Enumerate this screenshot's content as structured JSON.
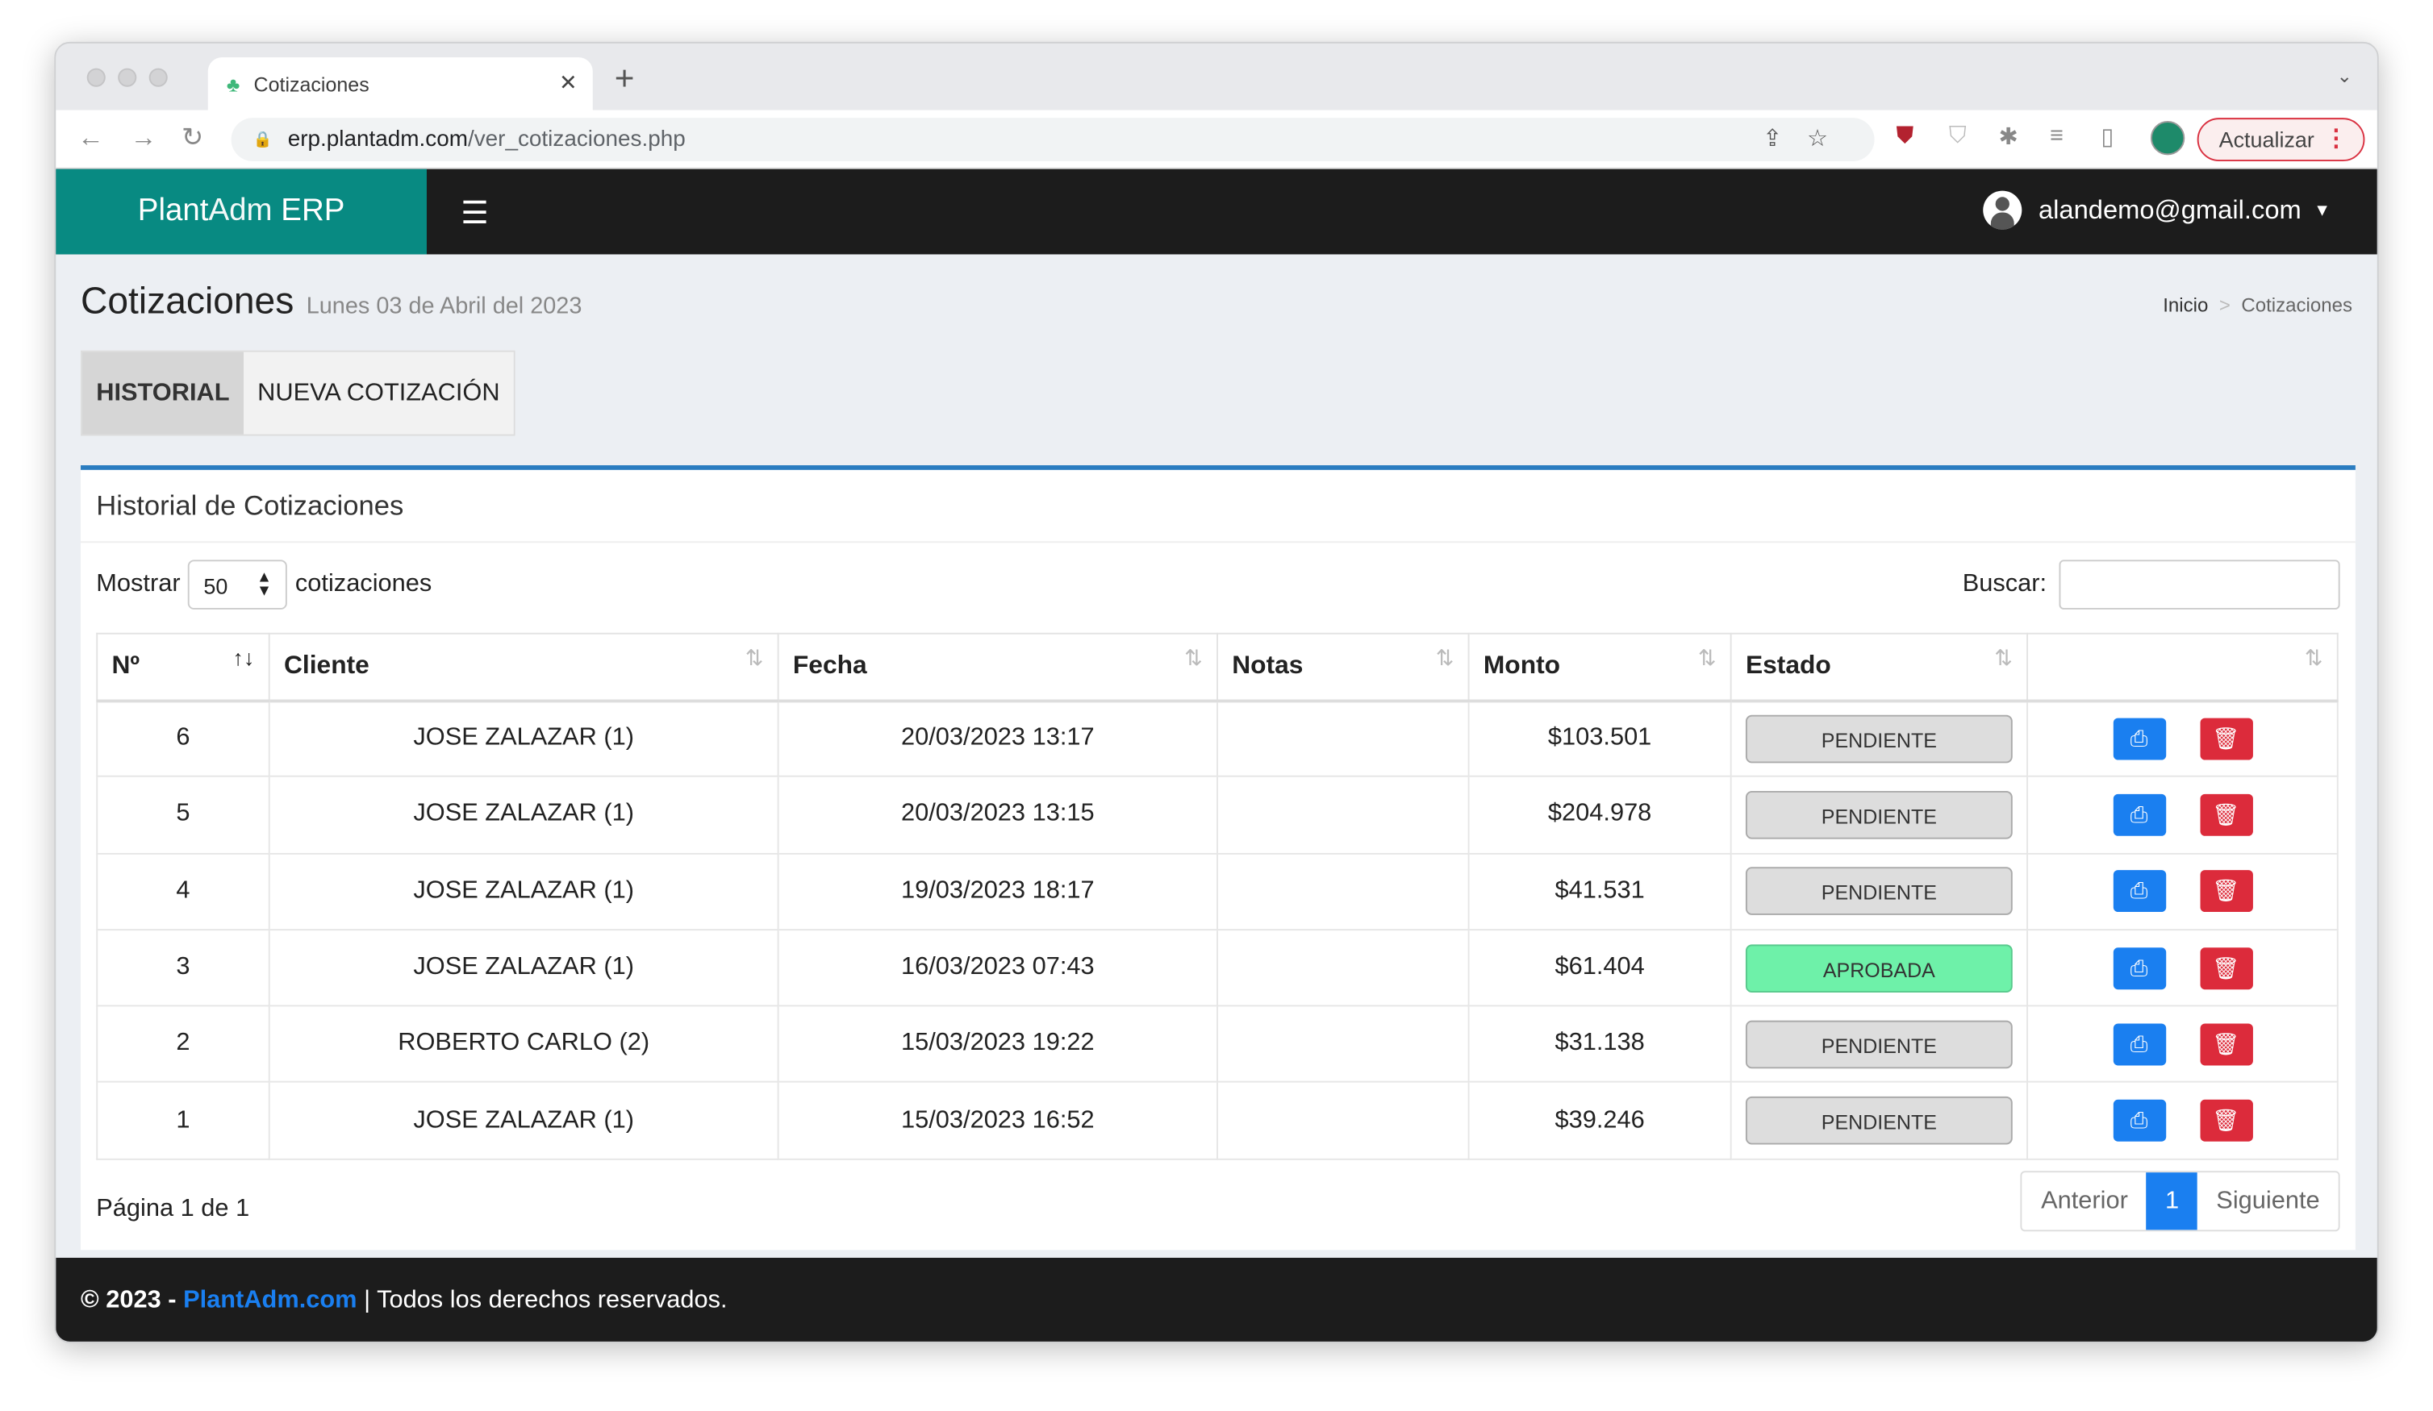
{
  "browser": {
    "tab_title": "Cotizaciones",
    "url_host": "erp.plantadm.com",
    "url_path": "/ver_cotizaciones.php",
    "update_label": "Actualizar"
  },
  "navbar": {
    "brand_bold": "Plant",
    "brand_thin": "Adm",
    "brand_rest": " ERP",
    "user_email": "alandemo@gmail.com"
  },
  "page": {
    "title": "Cotizaciones",
    "date": "Lunes 03 de Abril del 2023",
    "breadcrumb": [
      "Inicio",
      "Cotizaciones"
    ]
  },
  "tabs": [
    "HISTORIAL",
    "NUEVA COTIZACIÓN"
  ],
  "card": {
    "title": "Historial de Cotizaciones",
    "show_label": "Mostrar",
    "show_value": "50",
    "show_suffix": "cotizaciones",
    "search_label": "Buscar:",
    "search_value": ""
  },
  "table": {
    "headers": [
      "Nº",
      "Cliente",
      "Fecha",
      "Notas",
      "Monto",
      "Estado",
      ""
    ],
    "rows": [
      {
        "n": "6",
        "cliente": "JOSE ZALAZAR (1)",
        "fecha": "20/03/2023 13:17",
        "notas": "",
        "monto": "$103.501",
        "estado": "PENDIENTE"
      },
      {
        "n": "5",
        "cliente": "JOSE ZALAZAR (1)",
        "fecha": "20/03/2023 13:15",
        "notas": "",
        "monto": "$204.978",
        "estado": "PENDIENTE"
      },
      {
        "n": "4",
        "cliente": "JOSE ZALAZAR (1)",
        "fecha": "19/03/2023 18:17",
        "notas": "",
        "monto": "$41.531",
        "estado": "PENDIENTE"
      },
      {
        "n": "3",
        "cliente": "JOSE ZALAZAR (1)",
        "fecha": "16/03/2023 07:43",
        "notas": "",
        "monto": "$61.404",
        "estado": "APROBADA"
      },
      {
        "n": "2",
        "cliente": "ROBERTO CARLO (2)",
        "fecha": "15/03/2023 19:22",
        "notas": "",
        "monto": "$31.138",
        "estado": "PENDIENTE"
      },
      {
        "n": "1",
        "cliente": "JOSE ZALAZAR (1)",
        "fecha": "15/03/2023 16:52",
        "notas": "",
        "monto": "$39.246",
        "estado": "PENDIENTE"
      }
    ]
  },
  "pagination": {
    "info": "Página 1 de 1",
    "prev": "Anterior",
    "current": "1",
    "next": "Siguiente"
  },
  "footer": {
    "year": "© 2023 - ",
    "link": "PlantAdm.com",
    "rest": " | Todos los derechos reservados."
  },
  "colors": {
    "brand": "#088a82",
    "primary": "#1a7ff0",
    "danger": "#dc2b3b",
    "approved": "#6ef1a9"
  }
}
